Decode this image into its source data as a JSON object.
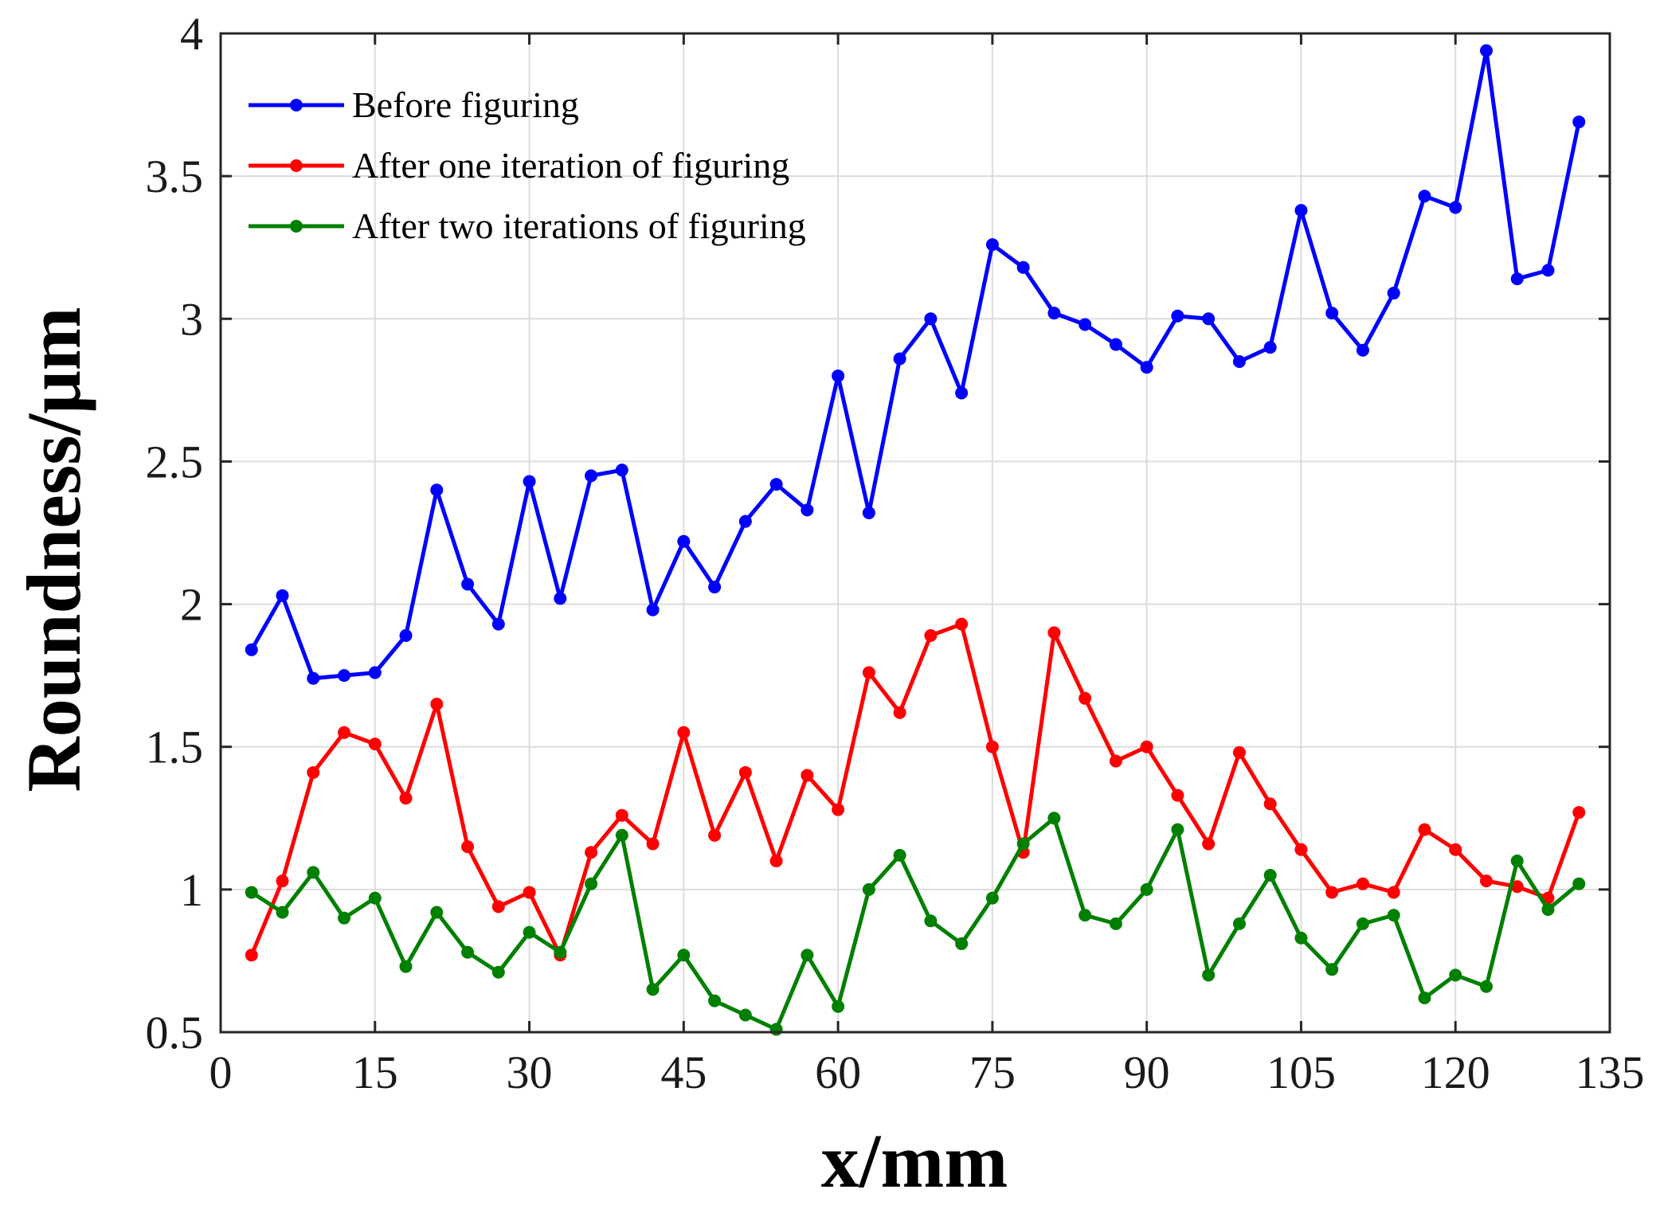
{
  "chart_data": {
    "type": "line",
    "title": "",
    "xlabel": "x/mm",
    "ylabel": "Roundness/μm",
    "xlim": [
      0,
      135
    ],
    "ylim": [
      0.5,
      4
    ],
    "xticks": [
      0,
      15,
      30,
      45,
      60,
      75,
      90,
      105,
      120,
      135
    ],
    "yticks": [
      0.5,
      1,
      1.5,
      2,
      2.5,
      3,
      3.5,
      4
    ],
    "xtick_labels": [
      "0",
      "15",
      "30",
      "45",
      "60",
      "75",
      "90",
      "105",
      "120",
      "135"
    ],
    "ytick_labels": [
      "0.5",
      "1",
      "1.5",
      "2",
      "2.5",
      "3",
      "3.5",
      "4"
    ],
    "grid": true,
    "legend_position": "top-left",
    "x": [
      3,
      6,
      9,
      12,
      15,
      18,
      21,
      24,
      27,
      30,
      33,
      36,
      39,
      42,
      45,
      48,
      51,
      54,
      57,
      60,
      63,
      66,
      69,
      72,
      75,
      78,
      81,
      84,
      87,
      90,
      93,
      96,
      99,
      102,
      105,
      108,
      111,
      114,
      117,
      120,
      123,
      126,
      129,
      132
    ],
    "series": [
      {
        "name": "Before figuring",
        "color": "#0000ff",
        "values": [
          1.84,
          2.03,
          1.74,
          1.75,
          1.76,
          1.89,
          2.4,
          2.07,
          1.93,
          2.43,
          2.02,
          2.45,
          2.47,
          1.98,
          2.22,
          2.06,
          2.29,
          2.42,
          2.33,
          2.8,
          2.32,
          2.86,
          3.0,
          2.74,
          3.26,
          3.18,
          3.02,
          2.98,
          2.91,
          2.83,
          3.01,
          3.0,
          2.85,
          2.9,
          3.38,
          3.02,
          2.89,
          3.09,
          3.43,
          3.39,
          3.94,
          3.14,
          3.17,
          3.69
        ]
      },
      {
        "name": "After one iteration of figuring",
        "color": "#ff0000",
        "values": [
          0.77,
          1.03,
          1.41,
          1.55,
          1.51,
          1.32,
          1.65,
          1.15,
          0.94,
          0.99,
          0.77,
          1.13,
          1.26,
          1.16,
          1.55,
          1.19,
          1.41,
          1.1,
          1.4,
          1.28,
          1.76,
          1.62,
          1.89,
          1.93,
          1.5,
          1.13,
          1.9,
          1.67,
          1.45,
          1.5,
          1.33,
          1.16,
          1.48,
          1.3,
          1.14,
          0.99,
          1.02,
          0.99,
          1.21,
          1.14,
          1.03,
          1.01,
          0.97,
          1.27
        ]
      },
      {
        "name": "After two iterations of figuring",
        "color": "#008000",
        "values": [
          0.99,
          0.92,
          1.06,
          0.9,
          0.97,
          0.73,
          0.92,
          0.78,
          0.71,
          0.85,
          0.78,
          1.02,
          1.19,
          0.65,
          0.77,
          0.61,
          0.56,
          0.51,
          0.77,
          0.59,
          1.0,
          1.12,
          0.89,
          0.81,
          0.97,
          1.16,
          1.25,
          0.91,
          0.88,
          1.0,
          1.21,
          0.7,
          0.88,
          1.05,
          0.83,
          0.72,
          0.88,
          0.91,
          0.62,
          0.7,
          0.66,
          1.1,
          0.93,
          1.02
        ]
      }
    ]
  }
}
